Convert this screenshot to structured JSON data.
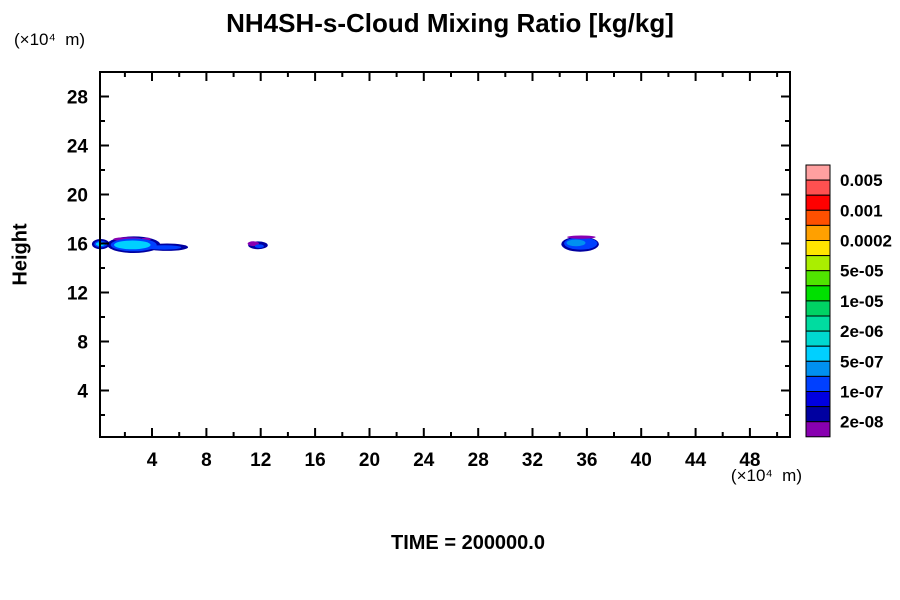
{
  "chart_data": {
    "type": "heatmap",
    "title": "NH4SH-s-Cloud Mixing Ratio [kg/kg]",
    "ylabel": "Height",
    "y_axis_unit": "(×10⁴  m)",
    "x_axis_unit": "(×10⁴  m)",
    "time_label": "TIME = 200000.0",
    "xlim": [
      0.17,
      50.95
    ],
    "ylim": [
      0.2,
      30.0
    ],
    "x_major_ticks": [
      4,
      8,
      12,
      16,
      20,
      24,
      28,
      32,
      36,
      40,
      44,
      48
    ],
    "x_minor_ticks": [
      2,
      6,
      10,
      14,
      18,
      22,
      26,
      30,
      34,
      38,
      42,
      46,
      50
    ],
    "y_major_ticks": [
      4,
      8,
      12,
      16,
      20,
      24,
      28
    ],
    "y_minor_ticks": [
      2,
      6,
      10,
      14,
      18,
      22,
      26
    ],
    "grid": false,
    "legend_position": "right-colorbar",
    "colorbar": {
      "cell_colors_top_to_bottom": [
        "#ffa0a0",
        "#ff5050",
        "#ff0000",
        "#ff5000",
        "#ffa000",
        "#ffe400",
        "#aaee00",
        "#50e400",
        "#00e000",
        "#00d264",
        "#00dca0",
        "#00d8d0",
        "#00d0ff",
        "#0090f0",
        "#0040ff",
        "#0000e0",
        "#0000a0",
        "#8800b0"
      ],
      "labels": [
        "0.005",
        "0.001",
        "0.0002",
        "5e-05",
        "1e-05",
        "2e-06",
        "5e-07",
        "1e-07",
        "2e-08"
      ]
    },
    "cloud_regions": [
      {
        "cx": 0.22,
        "cy": 15.95,
        "rx": 0.65,
        "ry": 0.42,
        "color": "#0000a0"
      },
      {
        "cx": 0.22,
        "cy": 15.95,
        "rx": 0.48,
        "ry": 0.28,
        "color": "#0040ff"
      },
      {
        "cx": 0.2,
        "cy": 15.95,
        "rx": 0.33,
        "ry": 0.16,
        "color": "#00d0ff"
      },
      {
        "cx": 2.65,
        "cy": 15.9,
        "rx": 1.95,
        "ry": 0.68,
        "color": "#0000a0"
      },
      {
        "cx": 5.1,
        "cy": 15.7,
        "rx": 1.55,
        "ry": 0.3,
        "color": "#0000a0"
      },
      {
        "cx": 2.2,
        "cy": 16.35,
        "rx": 1.05,
        "ry": 0.16,
        "color": "#8800b0"
      },
      {
        "cx": 3.55,
        "cy": 16.35,
        "rx": 0.35,
        "ry": 0.12,
        "color": "#8800b0"
      },
      {
        "cx": 2.65,
        "cy": 15.88,
        "rx": 1.7,
        "ry": 0.52,
        "color": "#0040ff"
      },
      {
        "cx": 4.9,
        "cy": 15.68,
        "rx": 1.25,
        "ry": 0.18,
        "color": "#0040ff"
      },
      {
        "cx": 2.55,
        "cy": 15.88,
        "rx": 1.35,
        "ry": 0.36,
        "color": "#00d0ff"
      },
      {
        "cx": 11.8,
        "cy": 15.85,
        "rx": 0.72,
        "ry": 0.32,
        "color": "#0000a0"
      },
      {
        "cx": 11.45,
        "cy": 15.98,
        "rx": 0.42,
        "ry": 0.2,
        "color": "#8800b0"
      },
      {
        "cx": 11.9,
        "cy": 15.78,
        "rx": 0.33,
        "ry": 0.15,
        "color": "#0040ff"
      },
      {
        "cx": 35.5,
        "cy": 15.95,
        "rx": 1.38,
        "ry": 0.62,
        "color": "#0000a0"
      },
      {
        "cx": 35.55,
        "cy": 16.0,
        "rx": 1.22,
        "ry": 0.5,
        "color": "#0040ff"
      },
      {
        "cx": 35.2,
        "cy": 16.05,
        "rx": 0.7,
        "ry": 0.28,
        "color": "#0090f0"
      },
      {
        "cx": 35.6,
        "cy": 16.52,
        "rx": 1.05,
        "ry": 0.13,
        "color": "#8800b0"
      }
    ]
  }
}
